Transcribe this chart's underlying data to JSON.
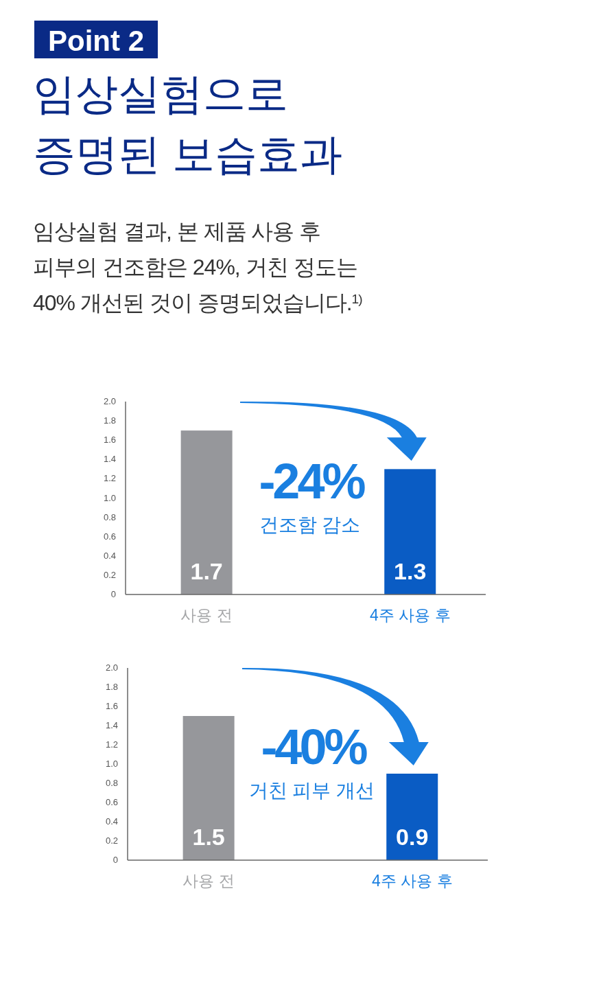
{
  "chart_data": [
    {
      "type": "bar",
      "title": "Point 2",
      "subtitle": "임상실험으로\n증명된 보습효과",
      "annotations": [
        "임상실험 결과, 본 제품 사용 후\n피부의 건조함은 24%, 거친 정도는\n40% 개선된 것이 증명되었습니다.$^{1)}$",
        "-24%",
        "건조함 감소"
      ],
      "categories": [
        "사용 전",
        "4주 사용 후"
      ],
      "values": [
        1.7,
        1.3
      ],
      "colors": [
        "#96979b",
        "#0a5cc4"
      ],
      "data_labels": true,
      "ylim": [
        0,
        2
      ],
      "yticks": [
        0,
        {
          "value": 0.2,
          "label": "0.2"
        },
        {
          "value": 0.4,
          "label": "0.4"
        },
        {
          "value": 0.6,
          "label": "0.6"
        },
        {
          "value": 0.8,
          "label": "0.8"
        },
        {
          "value": 1,
          "label": "1.0"
        },
        {
          "value": 1.2,
          "label": "1.2"
        },
        {
          "value": 1.4,
          "label": "1.4"
        },
        {
          "value": 1.6,
          "label": "1.6"
        },
        {
          "value": 1.8,
          "label": "1.8"
        },
        {
          "value": 2,
          "label": "2.0"
        }
      ]
    },
    {
      "type": "bar",
      "annotations": [
        "-40%",
        "거친 피부 개선"
      ],
      "categories": [
        "사용 전",
        "4주 사용 후"
      ],
      "values": [
        1.5,
        0.9
      ],
      "colors": [
        "#96979b",
        "#0a5cc4"
      ],
      "data_labels": true,
      "ylim": [
        0,
        2
      ],
      "yticks": [
        0,
        {
          "value": 0.2,
          "label": "0.2"
        },
        {
          "value": 0.4,
          "label": "0.4"
        },
        {
          "value": 0.6,
          "label": "0.6"
        },
        {
          "value": 0.8,
          "label": "0.8"
        },
        {
          "value": 1,
          "label": "1.0"
        },
        {
          "value": 1.2,
          "label": "1.2"
        },
        {
          "value": 1.4,
          "label": "1.4"
        },
        {
          "value": 1.6,
          "label": "1.6"
        },
        {
          "value": 1.8,
          "label": "1.8"
        },
        {
          "value": 2,
          "label": "2.0"
        }
      ]
    }
  ]
}
